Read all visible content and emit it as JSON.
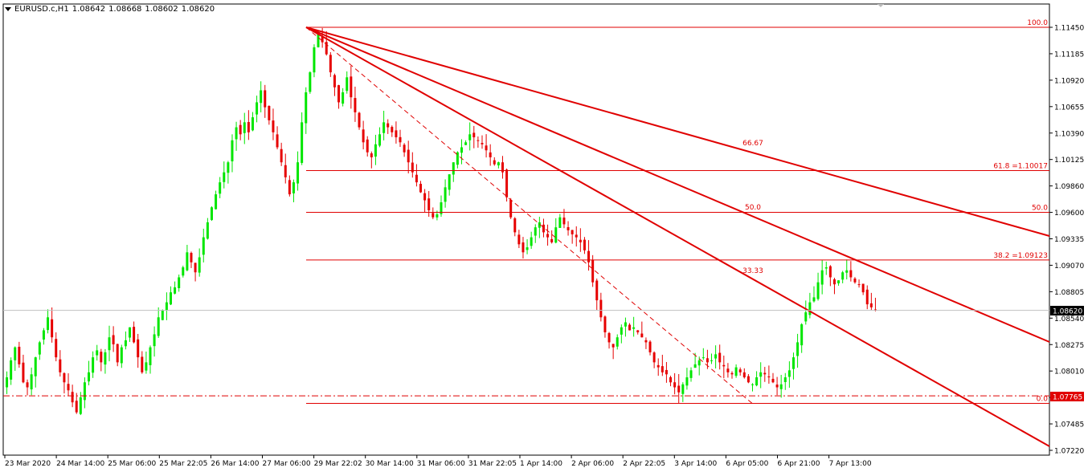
{
  "header": {
    "symbol": "EURUSD.c,H1",
    "open": "1.08642",
    "high": "1.08668",
    "low": "1.08602",
    "close": "1.08620"
  },
  "price_axis": {
    "ticks": [
      "1.11450",
      "1.11185",
      "1.10920",
      "1.10655",
      "1.10390",
      "1.10125",
      "1.09860",
      "1.09600",
      "1.09335",
      "1.09070",
      "1.08805",
      "1.08540",
      "1.08275",
      "1.08010",
      "1.07750",
      "1.07485",
      "1.07220"
    ],
    "current_price_label": "1.08620",
    "line_price_label": "1.07765"
  },
  "time_axis": {
    "labels": [
      "23 Mar 2020",
      "24 Mar 14:00",
      "25 Mar 06:00",
      "25 Mar 22:05",
      "26 Mar 14:00",
      "27 Mar 06:00",
      "29 Mar 22:02",
      "30 Mar 14:00",
      "31 Mar 06:00",
      "31 Mar 22:05",
      "1 Apr 14:00",
      "2 Apr 06:00",
      "2 Apr 22:05",
      "3 Apr 14:00",
      "6 Apr 05:00",
      "6 Apr 21:00",
      "7 Apr 13:00"
    ]
  },
  "fibonacci": {
    "levels": [
      {
        "label": "100.0",
        "price": 1.1145
      },
      {
        "label": "61.8 =1.10017",
        "price": 1.10017
      },
      {
        "label": "50.0",
        "price": 1.096
      },
      {
        "label": "38.2 =1.09123",
        "price": 1.09123
      },
      {
        "label": "0.0",
        "price": 1.0769
      }
    ]
  },
  "fan": {
    "labels": [
      "66.67",
      "50.0",
      "33.33"
    ]
  },
  "colors": {
    "bull": "#00e600",
    "bear": "#e60000",
    "drawing": "#e00000",
    "current_price_bg": "#000000",
    "line_price_bg": "#e00000"
  },
  "chart_data": {
    "type": "candlestick",
    "symbol": "EURUSD.c",
    "timeframe": "H1",
    "ylim": [
      1.0722,
      1.1158
    ],
    "bars_close": [
      1.0795,
      1.0812,
      1.0825,
      1.0808,
      1.079,
      1.0785,
      1.0798,
      1.0815,
      1.083,
      1.0842,
      1.0855,
      1.0835,
      1.0815,
      1.08,
      1.079,
      1.0782,
      1.077,
      1.076,
      1.0775,
      1.079,
      1.08,
      1.0815,
      1.0822,
      1.081,
      1.082,
      1.0835,
      1.0828,
      1.081,
      1.0825,
      1.0832,
      1.0845,
      1.083,
      1.0815,
      1.08,
      1.081,
      1.0825,
      1.0838,
      1.0855,
      1.0862,
      1.087,
      1.088,
      1.0885,
      1.0895,
      1.0905,
      1.092,
      1.091,
      1.09,
      1.0915,
      1.0935,
      1.095,
      1.0965,
      1.0978,
      1.099,
      1.1,
      1.101,
      1.1032,
      1.1045,
      1.1038,
      1.105,
      1.104,
      1.1055,
      1.107,
      1.1082,
      1.1065,
      1.1052,
      1.104,
      1.1025,
      1.101,
      1.0995,
      1.0978,
      1.099,
      1.101,
      1.105,
      1.108,
      1.11,
      1.1125,
      1.1138,
      1.113,
      1.1118,
      1.11,
      1.1085,
      1.107,
      1.108,
      1.1095,
      1.1075,
      1.106,
      1.1045,
      1.103,
      1.102,
      1.1015,
      1.1028,
      1.1038,
      1.105,
      1.1045,
      1.104,
      1.1035,
      1.103,
      1.102,
      1.101,
      1.1,
      1.099,
      1.098,
      1.0972,
      1.0962,
      1.0955,
      1.0958,
      1.097,
      1.0985,
      1.0998,
      1.101,
      1.102,
      1.1025,
      1.103,
      1.1038,
      1.1035,
      1.1032,
      1.1028,
      1.1022,
      1.1015,
      1.1008,
      1.101,
      1.1,
      1.0975,
      1.0955,
      1.094,
      1.0928,
      1.092,
      1.0925,
      1.0935,
      1.0945,
      1.095,
      1.094,
      1.0935,
      1.093,
      1.0945,
      1.0955,
      1.0948,
      1.0942,
      1.0938,
      1.0935,
      1.093,
      1.0922,
      1.091,
      1.089,
      1.0872,
      1.0855,
      1.084,
      1.083,
      1.0825,
      1.0835,
      1.0845,
      1.085,
      1.0842,
      1.0845,
      1.084,
      1.0835,
      1.083,
      1.082,
      1.081,
      1.0805,
      1.08,
      1.0798,
      1.079,
      1.0785,
      1.078,
      1.0788,
      1.0795,
      1.0802,
      1.0808,
      1.0812,
      1.0815,
      1.081,
      1.0812,
      1.0818,
      1.081,
      1.0806,
      1.08,
      1.0798,
      1.0805,
      1.08,
      1.0795,
      1.079,
      1.0788,
      1.0795,
      1.08,
      1.0798,
      1.0795,
      1.079,
      1.0785,
      1.0788,
      1.0795,
      1.0802,
      1.0815,
      1.083,
      1.0848,
      1.086,
      1.087,
      1.0875,
      1.089,
      1.0902,
      1.0905,
      1.0895,
      1.0888,
      1.0892,
      1.09,
      1.0902,
      1.0895,
      1.089,
      1.0888,
      1.088,
      1.0868,
      1.0865,
      1.0862
    ]
  }
}
